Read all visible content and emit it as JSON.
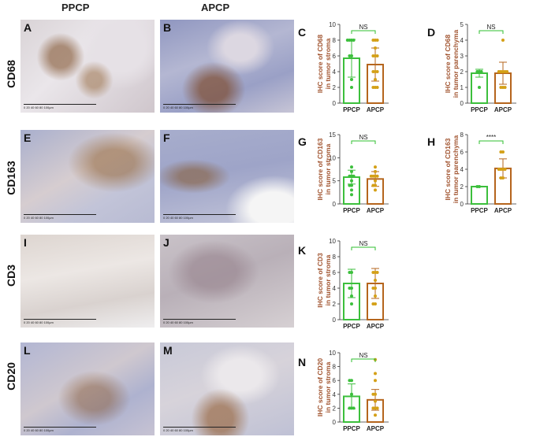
{
  "columns": [
    "PPCP",
    "APCP"
  ],
  "rows": [
    "CD68",
    "CD163",
    "CD3",
    "CD20"
  ],
  "photos": [
    {
      "letter": "A",
      "tone": "stroma_light"
    },
    {
      "letter": "B",
      "tone": "dense_blue"
    },
    {
      "letter": "E",
      "tone": "mixed"
    },
    {
      "letter": "F",
      "tone": "dense_blue"
    },
    {
      "letter": "I",
      "tone": "pale"
    },
    {
      "letter": "J",
      "tone": "mixed"
    },
    {
      "letter": "L",
      "tone": "mixed"
    },
    {
      "letter": "M",
      "tone": "pale"
    }
  ],
  "scale_label": "0   20   40   60   80   100µm",
  "colors": {
    "ppcp": "#3cbf3c",
    "apcp": "#b5651d",
    "apcp_dots": "#d4a017",
    "ylabel": "#a0522d",
    "sig": "#2fbf2f"
  },
  "chart_data": [
    {
      "panel": "C",
      "type": "bar",
      "categories": [
        "PPCP",
        "APCP"
      ],
      "values": [
        5.7,
        4.9
      ],
      "errors": [
        2.4,
        2.1
      ],
      "ylim": [
        0,
        10
      ],
      "yticks": [
        0,
        2,
        4,
        6,
        8,
        10
      ],
      "ylabel": [
        "IHC score of CD68",
        "in tumor stroma"
      ],
      "sig": "NS",
      "points": [
        [
          8,
          8,
          8,
          8,
          6,
          6,
          3,
          2
        ],
        [
          8,
          8,
          8,
          7,
          6,
          6,
          6,
          4,
          4,
          4,
          3,
          2,
          2,
          2
        ]
      ]
    },
    {
      "panel": "D",
      "type": "bar",
      "categories": [
        "PPCP",
        "APCP"
      ],
      "values": [
        1.9,
        1.9
      ],
      "errors": [
        0.25,
        0.7
      ],
      "ylim": [
        0,
        5
      ],
      "yticks": [
        0,
        1,
        2,
        3,
        4,
        5
      ],
      "ylabel": [
        "IHC score of CD68",
        "in tumor parenchyma"
      ],
      "sig": "NS",
      "points": [
        [
          2,
          2,
          2,
          1
        ],
        [
          4,
          2,
          2,
          2,
          2,
          2,
          1,
          1,
          1
        ]
      ]
    },
    {
      "panel": "G",
      "type": "bar",
      "categories": [
        "PPCP",
        "APCP"
      ],
      "values": [
        5.8,
        5.4
      ],
      "errors": [
        1.5,
        1.6
      ],
      "ylim": [
        0,
        15
      ],
      "yticks": [
        0,
        5,
        10,
        15
      ],
      "ylabel": [
        "IHC score of CD163",
        "in tumor stroma"
      ],
      "sig": "NS",
      "points": [
        [
          8,
          7,
          6,
          6,
          6,
          5,
          4,
          4,
          3,
          2
        ],
        [
          8,
          7,
          6,
          6,
          6,
          6,
          5,
          4,
          4,
          3
        ]
      ]
    },
    {
      "panel": "H",
      "type": "bar",
      "categories": [
        "PPCP",
        "APCP"
      ],
      "values": [
        2.0,
        4.1
      ],
      "errors": [
        0.05,
        1.1
      ],
      "ylim": [
        0,
        8
      ],
      "yticks": [
        0,
        2,
        4,
        6,
        8
      ],
      "ylabel": [
        "IHC score of CD163",
        "in tumor parenchyma"
      ],
      "sig": "****",
      "points": [
        [
          2,
          2
        ],
        [
          6,
          6,
          4,
          4,
          4,
          4,
          3,
          3
        ]
      ]
    },
    {
      "panel": "K",
      "type": "bar",
      "categories": [
        "PPCP",
        "APCP"
      ],
      "values": [
        4.6,
        4.6
      ],
      "errors": [
        1.8,
        1.9
      ],
      "ylim": [
        0,
        10
      ],
      "yticks": [
        0,
        2,
        4,
        6,
        8,
        10
      ],
      "ylabel": [
        "IHC score of CD3",
        "in tumor stroma"
      ],
      "sig": "NS",
      "points": [
        [
          6,
          6,
          4,
          4,
          3,
          2
        ],
        [
          6,
          6,
          6,
          5,
          4,
          4,
          3,
          2,
          2
        ]
      ]
    },
    {
      "panel": "N",
      "type": "bar",
      "categories": [
        "PPCP",
        "APCP"
      ],
      "values": [
        3.7,
        3.2
      ],
      "errors": [
        1.8,
        1.5
      ],
      "ylim": [
        0,
        10
      ],
      "yticks": [
        0,
        2,
        4,
        6,
        8,
        10
      ],
      "ylabel": [
        "IHC score of CD20",
        "in tumor stroma"
      ],
      "sig": "NS",
      "points": [
        [
          6,
          6,
          4,
          2,
          2,
          2
        ],
        [
          9,
          7,
          6,
          4,
          4,
          3,
          2,
          2,
          2,
          1
        ]
      ]
    }
  ]
}
